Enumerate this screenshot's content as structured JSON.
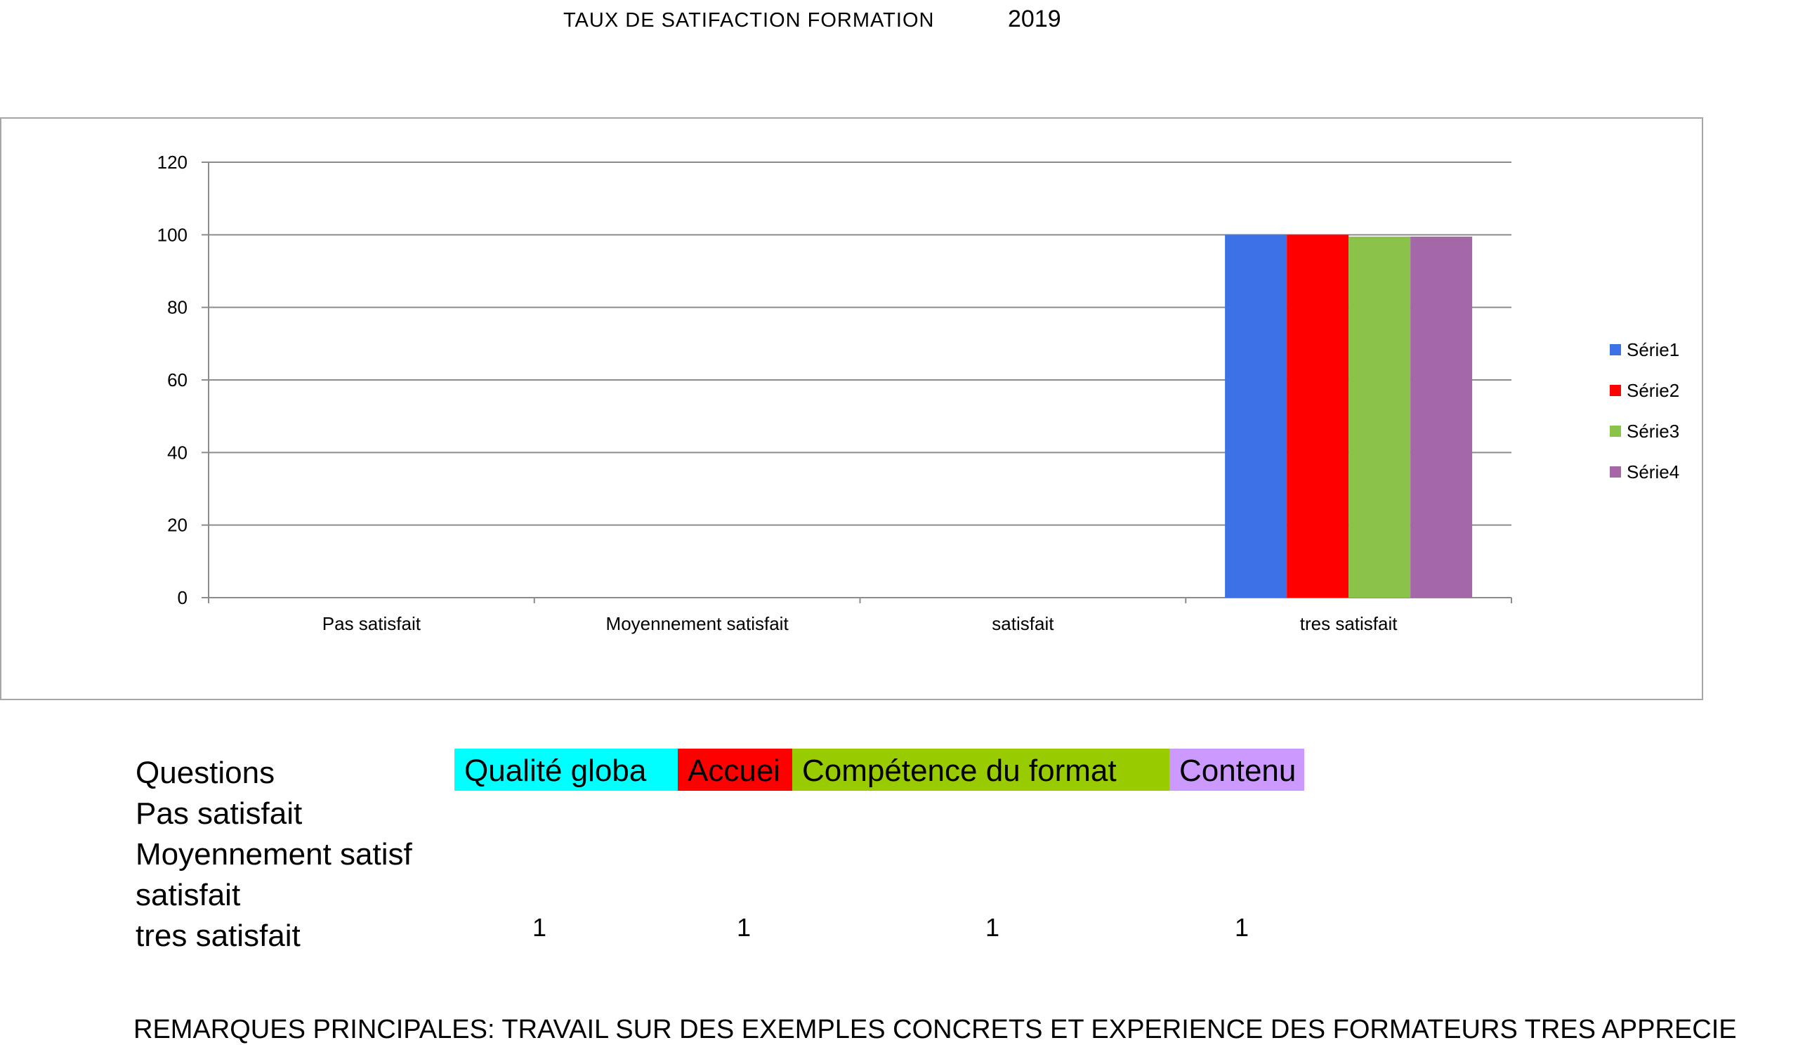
{
  "title": {
    "main": "TAUX DE SATIFACTION FORMATION",
    "year": "2019"
  },
  "chart_data": {
    "type": "bar",
    "categories": [
      "Pas satisfait",
      "Moyennement satisfait",
      "satisfait",
      "tres satisfait"
    ],
    "series": [
      {
        "name": "Série1",
        "values": [
          0,
          0,
          0,
          100
        ],
        "color": "#3c72e6"
      },
      {
        "name": "Série2",
        "values": [
          0,
          0,
          0,
          100
        ],
        "color": "#ff0000"
      },
      {
        "name": "Série3",
        "values": [
          0,
          0,
          0,
          99.5
        ],
        "color": "#8bc34a"
      },
      {
        "name": "Série4",
        "values": [
          0,
          0,
          0,
          99.5
        ],
        "color": "#a467a8"
      }
    ],
    "ylim": [
      0,
      120
    ],
    "yticks": [
      0,
      20,
      40,
      60,
      80,
      100,
      120
    ],
    "grid": true,
    "legend": "right",
    "xlabel": "",
    "ylabel": ""
  },
  "table": {
    "row_labels": [
      "Questions",
      "Pas satisfait",
      "Moyennement satisf",
      "satisfait",
      "tres satisfait"
    ],
    "columns": [
      {
        "header": "Qualité globa",
        "color": "#00ffff",
        "tres_satisfait": "1"
      },
      {
        "header": "Accuei",
        "color": "#ff0000",
        "tres_satisfait": "1"
      },
      {
        "header": "Compétence du format",
        "color": "#99cc00",
        "tres_satisfait": "1"
      },
      {
        "header": "Contenu",
        "color": "#cc99ff",
        "tres_satisfait": "1"
      }
    ]
  },
  "remarks": "REMARQUES PRINCIPALES: TRAVAIL SUR DES EXEMPLES CONCRETS ET EXPERIENCE DES FORMATEURS TRES APPRECIE"
}
